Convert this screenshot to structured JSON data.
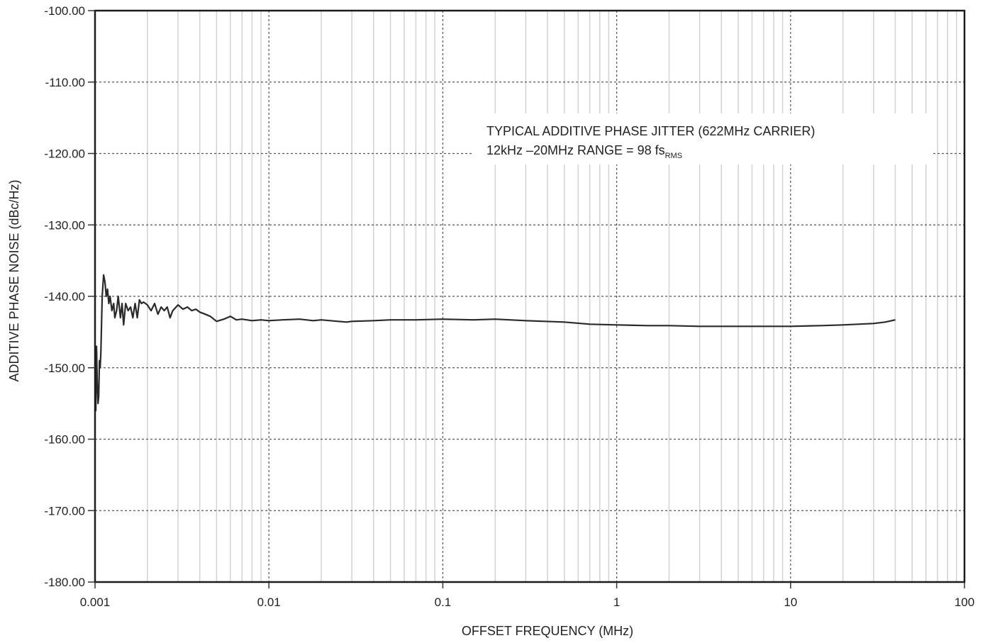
{
  "chart_data": {
    "type": "line",
    "xlabel": "OFFSET FREQUENCY (MHz)",
    "ylabel": "ADDITIVE PHASE NOISE (dBc/Hz)",
    "x_scale": "log",
    "xlim": [
      0.001,
      100
    ],
    "ylim": [
      -180,
      -100
    ],
    "grid": true,
    "x_tick_labels": [
      "0.001",
      "0.01",
      "0.1",
      "1",
      "10",
      "100"
    ],
    "y_tick_labels": [
      "-100.00",
      "-110.00",
      "-120.00",
      "-130.00",
      "-140.00",
      "-150.00",
      "-160.00",
      "-170.00",
      "-180.00"
    ],
    "annotation": {
      "line1": "TYPICAL ADDITIVE PHASE JITTER (622MHz CARRIER)",
      "line2_main": "12kHz –20MHz RANGE = 98 fs",
      "line2_sub": "RMS"
    },
    "line_color": "#2a2a2a",
    "series": [
      {
        "x": [
          0.001,
          0.00101,
          0.00102,
          0.00103,
          0.00104,
          0.00105,
          0.00106,
          0.00107,
          0.00108,
          0.0011,
          0.00112,
          0.00114,
          0.00116,
          0.00118,
          0.0012,
          0.00122,
          0.00125,
          0.00128,
          0.0013,
          0.00133,
          0.00136,
          0.0014,
          0.00143,
          0.00146,
          0.0015,
          0.00155,
          0.0016,
          0.00165,
          0.0017,
          0.00175,
          0.0018,
          0.00185,
          0.0019,
          0.002,
          0.0021,
          0.0022,
          0.0023,
          0.0024,
          0.0025,
          0.0026,
          0.0027,
          0.0028,
          0.003,
          0.0032,
          0.0034,
          0.0036,
          0.0038,
          0.004,
          0.0043,
          0.0046,
          0.005,
          0.0055,
          0.006,
          0.0065,
          0.007,
          0.008,
          0.009,
          0.01,
          0.012,
          0.015,
          0.018,
          0.02,
          0.025,
          0.028,
          0.03,
          0.04,
          0.05,
          0.07,
          0.1,
          0.15,
          0.2,
          0.3,
          0.5,
          0.7,
          1,
          1.5,
          2,
          3,
          5,
          7,
          10,
          15,
          20,
          30,
          35,
          40
        ],
        "y": [
          -154,
          -156,
          -147,
          -152,
          -155,
          -154,
          -149,
          -150,
          -148,
          -140,
          -137,
          -138,
          -140,
          -139,
          -141,
          -140,
          -142,
          -141,
          -143,
          -142,
          -140,
          -143,
          -141,
          -144,
          -141,
          -142,
          -141.5,
          -143,
          -141,
          -143,
          -140.5,
          -141,
          -140.8,
          -141.2,
          -142,
          -141,
          -142.5,
          -141.5,
          -142,
          -141.5,
          -143,
          -142,
          -141.2,
          -141.8,
          -141.5,
          -142,
          -141.8,
          -142.2,
          -142.5,
          -142.8,
          -143.5,
          -143.2,
          -142.8,
          -143.3,
          -143.2,
          -143.4,
          -143.3,
          -143.4,
          -143.3,
          -143.2,
          -143.4,
          -143.3,
          -143.5,
          -143.6,
          -143.5,
          -143.4,
          -143.3,
          -143.3,
          -143.2,
          -143.3,
          -143.2,
          -143.4,
          -143.6,
          -143.9,
          -144.0,
          -144.1,
          -144.1,
          -144.2,
          -144.2,
          -144.2,
          -144.2,
          -144.1,
          -144.0,
          -143.8,
          -143.6,
          -143.3
        ]
      }
    ]
  }
}
